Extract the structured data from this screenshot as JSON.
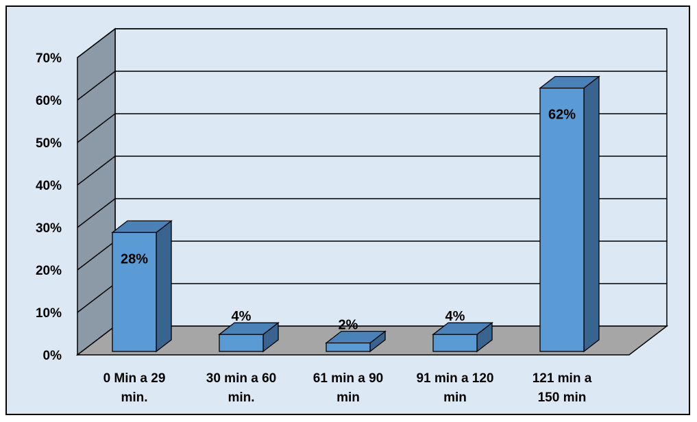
{
  "chart_data": {
    "type": "bar",
    "title": "",
    "xlabel": "",
    "ylabel": "",
    "categories": [
      [
        "0 Min a 29",
        "min."
      ],
      [
        "30 min a 60",
        "min."
      ],
      [
        "61 min a 90",
        "min"
      ],
      [
        "91 min a 120",
        "min"
      ],
      [
        "121 min a",
        "150 min"
      ]
    ],
    "values": [
      28,
      4,
      2,
      4,
      62
    ],
    "value_labels": [
      "28%",
      "4%",
      "2%",
      "4%",
      "62%"
    ],
    "value_label_position": [
      "inside",
      "above",
      "above",
      "above",
      "inside"
    ],
    "ylim": [
      0,
      70
    ],
    "yticks": [
      0,
      10,
      20,
      30,
      40,
      50,
      60,
      70
    ],
    "ytick_labels": [
      "0%",
      "10%",
      "20%",
      "30%",
      "40%",
      "50%",
      "60%",
      "70%"
    ],
    "grid": true,
    "three_d": true,
    "legend": "none"
  },
  "colors": {
    "plot_background": "#dde8f5",
    "bar_front": "#5b9bd5",
    "bar_top": "#4a82b8",
    "bar_side": "#3a6490",
    "floor": "#a6a6a6",
    "back_wall": "#8c9aa8",
    "gridline": "#000000"
  }
}
